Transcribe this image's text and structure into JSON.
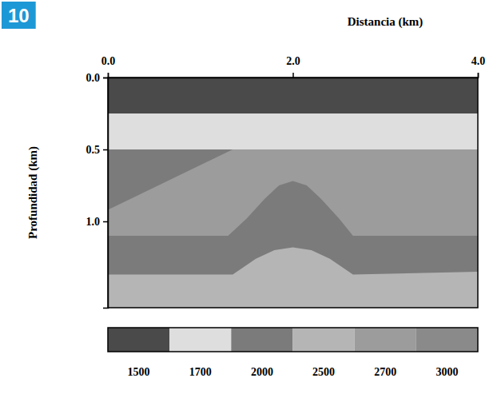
{
  "chart_data": {
    "type": "velocity_model",
    "annotations": [
      "10"
    ],
    "xlabel": "Distancia (km)",
    "ylabel": "Profundidad (km)",
    "xlim": [
      0,
      4
    ],
    "ylim": [
      0,
      1.6
    ],
    "xticks": [
      {
        "value": 0,
        "label": "0.0"
      },
      {
        "value": 2,
        "label": "2.0"
      },
      {
        "value": 4,
        "label": "4.0"
      }
    ],
    "yticks": [
      {
        "value": 0,
        "label": "0.0"
      },
      {
        "value": 0.5,
        "label": "0.5"
      },
      {
        "value": 1,
        "label": "1.0"
      }
    ],
    "layers": [
      {
        "velocity": 1500,
        "x": [
          0,
          4
        ],
        "top": [
          0,
          0
        ]
      },
      {
        "velocity": 1700,
        "x": [
          0,
          4
        ],
        "top": [
          0.25,
          0.25
        ]
      },
      {
        "velocity": 2000,
        "x": [
          0,
          4
        ],
        "top": [
          0.5,
          0.5
        ]
      },
      {
        "velocity": 2700,
        "x": [
          0,
          1.35,
          4
        ],
        "top": [
          0.92,
          0.5,
          0.5
        ]
      },
      {
        "velocity": 2000,
        "x": [
          0,
          1.3,
          1.5,
          1.7,
          1.85,
          2.0,
          2.15,
          2.3,
          2.5,
          2.65,
          4
        ],
        "top": [
          1.1,
          1.1,
          0.98,
          0.84,
          0.75,
          0.72,
          0.75,
          0.84,
          0.98,
          1.1,
          1.1
        ]
      },
      {
        "velocity": 2500,
        "x": [
          0,
          1.35,
          1.6,
          1.8,
          2.0,
          2.2,
          2.4,
          2.65,
          4
        ],
        "top": [
          1.37,
          1.37,
          1.26,
          1.2,
          1.18,
          1.2,
          1.26,
          1.37,
          1.35
        ]
      }
    ],
    "colorbar": {
      "values": [
        1500,
        1700,
        2000,
        2500,
        2700,
        3000
      ],
      "colors": [
        "#4a4a4a",
        "#dedede",
        "#7b7b7b",
        "#b5b5b5",
        "#9c9c9c",
        "#8a8a8a"
      ]
    }
  }
}
